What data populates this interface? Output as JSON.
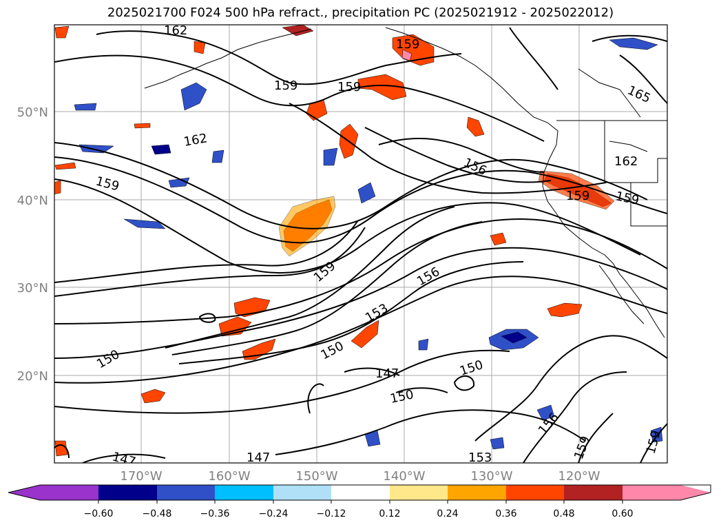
{
  "title": "2025021700 F024 500 hPa refract., precipitation PC (2025021912 - 2025022012)",
  "map": {
    "lat_labels": [
      "50°N",
      "40°N",
      "30°N",
      "20°N"
    ],
    "lon_labels": [
      "170°W",
      "160°W",
      "150°W",
      "140°W",
      "130°W",
      "120°W"
    ],
    "contour_labels": [
      "162",
      "159",
      "159",
      "159",
      "165",
      "162",
      "156",
      "159",
      "162",
      "159",
      "159",
      "156",
      "159",
      "153",
      "150",
      "150",
      "147",
      "150",
      "150",
      "156",
      "159",
      "147",
      "147",
      "153",
      "159"
    ]
  },
  "colorbar": {
    "ticks": [
      "−0.60",
      "−0.48",
      "−0.36",
      "−0.24",
      "−0.12",
      "0.12",
      "0.24",
      "0.36",
      "0.48",
      "0.60"
    ],
    "colors": [
      "#9933cc",
      "#00008b",
      "#3050c8",
      "#00bfff",
      "#b0e0f8",
      "#ffffff",
      "#ffe88a",
      "#ffa500",
      "#ff4500",
      "#b22222",
      "#ff88aa"
    ]
  }
}
